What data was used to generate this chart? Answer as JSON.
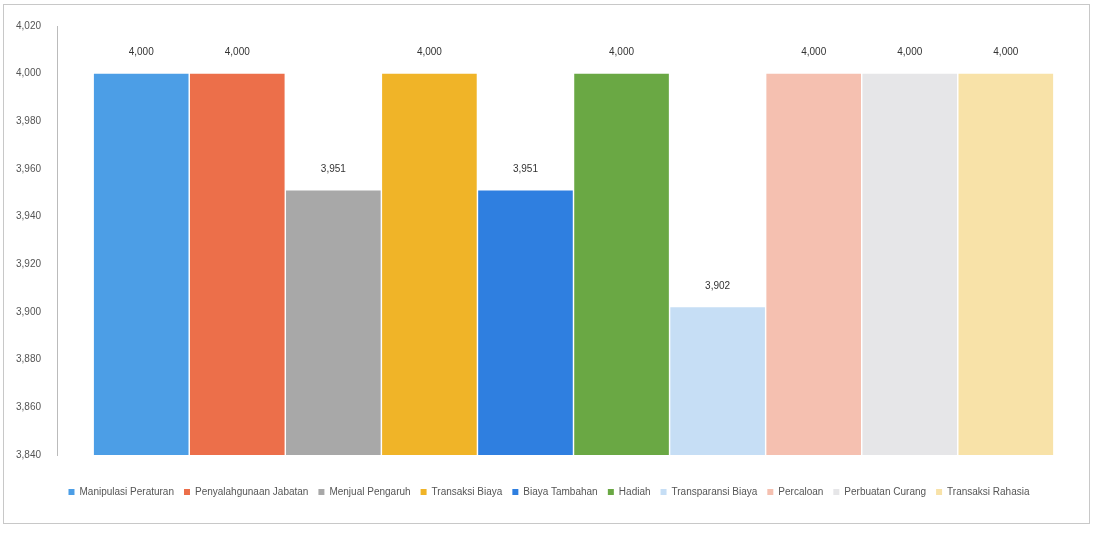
{
  "chart_data": {
    "type": "bar",
    "categories": [
      null
    ],
    "series": [
      {
        "name": "Manipulasi Peraturan",
        "color": "#4c9ee6",
        "values": [
          4000
        ],
        "value_labels": [
          "4,000"
        ]
      },
      {
        "name": "Penyalahgunaan Jabatan",
        "color": "#ec6f4a",
        "values": [
          4000
        ],
        "value_labels": [
          "4,000"
        ]
      },
      {
        "name": "Menjual Pengaruh",
        "color": "#a8a8a8",
        "values": [
          3951
        ],
        "value_labels": [
          "3,951"
        ]
      },
      {
        "name": "Transaksi Biaya",
        "color": "#f0b428",
        "values": [
          4000
        ],
        "value_labels": [
          "4,000"
        ]
      },
      {
        "name": "Biaya Tambahan",
        "color": "#2f7fe0",
        "values": [
          3951
        ],
        "value_labels": [
          "3,951"
        ]
      },
      {
        "name": "Hadiah",
        "color": "#6aa844",
        "values": [
          4000
        ],
        "value_labels": [
          "4,000"
        ]
      },
      {
        "name": "Transparansi Biaya",
        "color": "#c6def5",
        "values": [
          3902
        ],
        "value_labels": [
          "3,902"
        ]
      },
      {
        "name": "Percaloan",
        "color": "#f5c0b0",
        "values": [
          4000
        ],
        "value_labels": [
          "4,000"
        ]
      },
      {
        "name": "Perbuatan Curang",
        "color": "#e6e6e8",
        "values": [
          4000
        ],
        "value_labels": [
          "4,000"
        ]
      },
      {
        "name": "Transaksi Rahasia",
        "color": "#f8e2a8",
        "values": [
          4000
        ],
        "value_labels": [
          "4,000"
        ]
      }
    ],
    "ylim": [
      3840,
      4020
    ],
    "yticks": [
      {
        "value": 3840,
        "label": "3,840"
      },
      {
        "value": 3860,
        "label": "3,860"
      },
      {
        "value": 3880,
        "label": "3,880"
      },
      {
        "value": 3900,
        "label": "3,900"
      },
      {
        "value": 3920,
        "label": "3,920"
      },
      {
        "value": 3940,
        "label": "3,940"
      },
      {
        "value": 3960,
        "label": "3,960"
      },
      {
        "value": 3980,
        "label": "3,980"
      },
      {
        "value": 4000,
        "label": "4,000"
      },
      {
        "value": 4020,
        "label": "4,020"
      }
    ],
    "legend": "bottom"
  }
}
